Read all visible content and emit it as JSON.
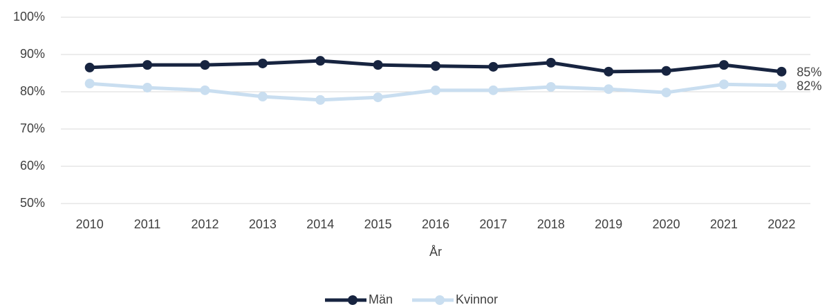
{
  "chart_data": {
    "type": "line",
    "x_label": "År",
    "categories": [
      "2010",
      "2011",
      "2012",
      "2013",
      "2014",
      "2015",
      "2016",
      "2017",
      "2018",
      "2019",
      "2020",
      "2021",
      "2022"
    ],
    "series": [
      {
        "name": "Män",
        "color": "#172440",
        "values": [
          86.5,
          87.2,
          87.2,
          87.6,
          88.3,
          87.2,
          86.9,
          86.7,
          87.8,
          85.4,
          85.6,
          87.2,
          85.4
        ],
        "value_labels": [
          null,
          null,
          null,
          null,
          null,
          null,
          null,
          null,
          null,
          null,
          null,
          null,
          "85%"
        ]
      },
      {
        "name": "Kvinnor",
        "color": "#c9def0",
        "values": [
          82.2,
          81.1,
          80.4,
          78.7,
          77.8,
          78.5,
          80.4,
          80.4,
          81.3,
          80.7,
          79.8,
          82.0,
          81.7
        ],
        "value_labels": [
          null,
          null,
          null,
          null,
          null,
          null,
          null,
          null,
          null,
          null,
          null,
          null,
          "82%"
        ]
      }
    ],
    "ylim": [
      50,
      100
    ],
    "yticks": [
      {
        "value": 50,
        "label": "50%"
      },
      {
        "value": 60,
        "label": "60%"
      },
      {
        "value": 70,
        "label": "70%"
      },
      {
        "value": 80,
        "label": "80%"
      },
      {
        "value": 90,
        "label": "90%"
      },
      {
        "value": 100,
        "label": "100%"
      }
    ],
    "grid": true,
    "legend": "bottom"
  }
}
